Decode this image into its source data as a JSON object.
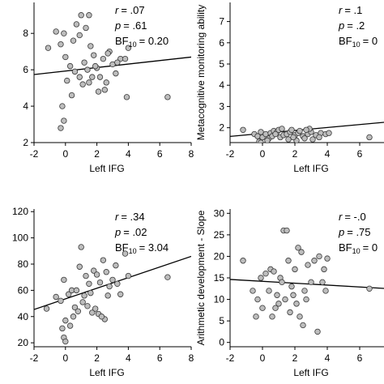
{
  "chart_data": [
    {
      "type": "scatter",
      "xlabel": "Left IFG",
      "ylabel": "",
      "xticks": [
        "-2",
        "0",
        "2",
        "4",
        "6",
        "8"
      ],
      "yticks": [
        "2",
        "4",
        "6",
        "8"
      ],
      "xlim": [
        -2,
        8
      ],
      "ylim": [
        2,
        9.7
      ],
      "stats": {
        "r_label": "r",
        "r_value": "= .07",
        "p_label": "p",
        "p_value": "= .61",
        "bf_label": "BF",
        "bf_sub": "10",
        "bf_value": "= 0.20"
      },
      "fit": {
        "intercept": 5.93,
        "slope": 0.096
      },
      "points": [
        {
          "x": -1.1,
          "y": 7.2
        },
        {
          "x": -0.6,
          "y": 8.1
        },
        {
          "x": -0.3,
          "y": 7.4
        },
        {
          "x": -0.1,
          "y": 8.0
        },
        {
          "x": 0.0,
          "y": 6.7
        },
        {
          "x": 0.3,
          "y": 6.2
        },
        {
          "x": 0.5,
          "y": 7.6
        },
        {
          "x": 0.7,
          "y": 8.5
        },
        {
          "x": 0.9,
          "y": 7.9
        },
        {
          "x": 1.0,
          "y": 9.0
        },
        {
          "x": 1.3,
          "y": 8.3
        },
        {
          "x": 1.5,
          "y": 9.0
        },
        {
          "x": 1.6,
          "y": 7.3
        },
        {
          "x": 1.8,
          "y": 6.8
        },
        {
          "x": 2.0,
          "y": 6.1
        },
        {
          "x": 2.2,
          "y": 5.6
        },
        {
          "x": 2.4,
          "y": 6.6
        },
        {
          "x": 2.6,
          "y": 5.3
        },
        {
          "x": 2.8,
          "y": 7.0
        },
        {
          "x": 3.0,
          "y": 6.3
        },
        {
          "x": 3.2,
          "y": 5.8
        },
        {
          "x": 3.5,
          "y": 6.6
        },
        {
          "x": 3.8,
          "y": 6.6
        },
        {
          "x": 4.0,
          "y": 7.2
        },
        {
          "x": 0.6,
          "y": 5.9
        },
        {
          "x": 0.9,
          "y": 5.6
        },
        {
          "x": 1.1,
          "y": 5.2
        },
        {
          "x": 1.4,
          "y": 6.0
        },
        {
          "x": 1.7,
          "y": 5.6
        },
        {
          "x": 2.1,
          "y": 4.8
        },
        {
          "x": 2.5,
          "y": 4.9
        },
        {
          "x": -0.2,
          "y": 4.0
        },
        {
          "x": -0.1,
          "y": 3.2
        },
        {
          "x": -0.3,
          "y": 2.8
        },
        {
          "x": 0.1,
          "y": 5.4
        },
        {
          "x": 1.2,
          "y": 6.4
        },
        {
          "x": 1.9,
          "y": 6.2
        },
        {
          "x": 3.9,
          "y": 4.5
        },
        {
          "x": 6.5,
          "y": 4.5
        },
        {
          "x": 2.7,
          "y": 6.9
        },
        {
          "x": 3.3,
          "y": 6.4
        },
        {
          "x": 0.4,
          "y": 4.6
        },
        {
          "x": 1.5,
          "y": 5.3
        }
      ]
    },
    {
      "type": "scatter",
      "xlabel": "Left IFG",
      "ylabel": "Metacognitive monitoring ability",
      "xticks": [
        "-2",
        "0",
        "2",
        "4",
        "6"
      ],
      "yticks": [
        "2",
        "3",
        "4",
        "5",
        "6",
        "7",
        "8"
      ],
      "xlim": [
        -2,
        7.5
      ],
      "ylim": [
        1.3,
        7.9
      ],
      "stats": {
        "r_label": "r",
        "r_value": "= .1",
        "p_label": "p",
        "p_value": "= .2",
        "bf_label": "BF",
        "bf_sub": "10",
        "bf_value": "= 0"
      },
      "fit": {
        "intercept": 1.73,
        "slope": 0.07
      },
      "points": [
        {
          "x": -1.2,
          "y": 1.9
        },
        {
          "x": -0.5,
          "y": 1.7
        },
        {
          "x": -0.3,
          "y": 1.6
        },
        {
          "x": -0.1,
          "y": 1.8
        },
        {
          "x": 0.0,
          "y": 1.55
        },
        {
          "x": 0.2,
          "y": 1.7
        },
        {
          "x": 0.5,
          "y": 1.75
        },
        {
          "x": 0.7,
          "y": 1.85
        },
        {
          "x": 0.9,
          "y": 1.8
        },
        {
          "x": 1.1,
          "y": 1.55
        },
        {
          "x": 1.3,
          "y": 1.65
        },
        {
          "x": 1.5,
          "y": 1.7
        },
        {
          "x": 1.7,
          "y": 1.8
        },
        {
          "x": 2.0,
          "y": 1.65
        },
        {
          "x": 2.2,
          "y": 1.75
        },
        {
          "x": 2.5,
          "y": 1.6
        },
        {
          "x": 2.8,
          "y": 1.7
        },
        {
          "x": 3.0,
          "y": 1.8
        },
        {
          "x": 3.3,
          "y": 1.65
        },
        {
          "x": 3.6,
          "y": 1.75
        },
        {
          "x": 3.9,
          "y": 1.7
        },
        {
          "x": 4.1,
          "y": 1.75
        },
        {
          "x": 6.6,
          "y": 1.55
        },
        {
          "x": 0.4,
          "y": 1.5
        },
        {
          "x": -0.2,
          "y": 1.35
        },
        {
          "x": -0.1,
          "y": 1.3
        },
        {
          "x": 0.6,
          "y": 1.6
        },
        {
          "x": 1.8,
          "y": 1.9
        },
        {
          "x": 2.3,
          "y": 1.85
        },
        {
          "x": 2.6,
          "y": 1.5
        },
        {
          "x": 3.5,
          "y": 1.55
        },
        {
          "x": 1.0,
          "y": 1.9
        },
        {
          "x": 1.6,
          "y": 1.45
        },
        {
          "x": 2.1,
          "y": 1.4
        },
        {
          "x": 0.3,
          "y": 1.4
        },
        {
          "x": 1.2,
          "y": 1.95
        },
        {
          "x": 2.9,
          "y": 1.95
        },
        {
          "x": 3.1,
          "y": 1.45
        },
        {
          "x": 1.9,
          "y": 1.55
        },
        {
          "x": 0.8,
          "y": 1.7
        },
        {
          "x": 2.7,
          "y": 1.9
        }
      ]
    },
    {
      "type": "scatter",
      "xlabel": "Left IFG",
      "ylabel": "",
      "xticks": [
        "-2",
        "0",
        "2",
        "4",
        "6",
        "8"
      ],
      "yticks": [
        "20",
        "40",
        "60",
        "80",
        "100",
        "120"
      ],
      "xlim": [
        -2,
        8
      ],
      "ylim": [
        17,
        122
      ],
      "stats": {
        "r_label": "r",
        "r_value": "= .34",
        "p_label": "p",
        "p_value": "= .02",
        "bf_label": "BF",
        "bf_sub": "10",
        "bf_value": "= 3.04"
      },
      "fit": {
        "intercept": 53.5,
        "slope": 4.05
      },
      "points": [
        {
          "x": -1.2,
          "y": 46
        },
        {
          "x": -0.6,
          "y": 55
        },
        {
          "x": -0.3,
          "y": 52
        },
        {
          "x": -0.1,
          "y": 68
        },
        {
          "x": 0.0,
          "y": 37
        },
        {
          "x": 0.2,
          "y": 57
        },
        {
          "x": 0.4,
          "y": 60
        },
        {
          "x": 0.7,
          "y": 60
        },
        {
          "x": 0.9,
          "y": 78
        },
        {
          "x": 1.0,
          "y": 93
        },
        {
          "x": 1.3,
          "y": 71
        },
        {
          "x": 1.5,
          "y": 65
        },
        {
          "x": 1.6,
          "y": 58
        },
        {
          "x": 1.8,
          "y": 75
        },
        {
          "x": 2.0,
          "y": 72
        },
        {
          "x": 2.2,
          "y": 66
        },
        {
          "x": 2.4,
          "y": 83
        },
        {
          "x": 2.6,
          "y": 74
        },
        {
          "x": 2.8,
          "y": 63
        },
        {
          "x": 3.0,
          "y": 68
        },
        {
          "x": 3.2,
          "y": 79
        },
        {
          "x": 3.5,
          "y": 57
        },
        {
          "x": 3.8,
          "y": 88
        },
        {
          "x": 4.0,
          "y": 71
        },
        {
          "x": 0.6,
          "y": 47
        },
        {
          "x": 0.8,
          "y": 44
        },
        {
          "x": 1.1,
          "y": 51
        },
        {
          "x": 1.4,
          "y": 48
        },
        {
          "x": 1.7,
          "y": 43
        },
        {
          "x": 2.1,
          "y": 42
        },
        {
          "x": 2.5,
          "y": 38
        },
        {
          "x": -0.2,
          "y": 31
        },
        {
          "x": -0.1,
          "y": 24
        },
        {
          "x": 0.0,
          "y": 21
        },
        {
          "x": 0.3,
          "y": 33
        },
        {
          "x": 1.2,
          "y": 56
        },
        {
          "x": 1.9,
          "y": 46
        },
        {
          "x": 3.3,
          "y": 65
        },
        {
          "x": 6.5,
          "y": 70
        },
        {
          "x": 2.7,
          "y": 56
        },
        {
          "x": 2.3,
          "y": 40
        },
        {
          "x": 0.5,
          "y": 40
        }
      ]
    },
    {
      "type": "scatter",
      "xlabel": "Left IFG",
      "ylabel": "Arithmetic development - Slope",
      "xticks": [
        "-2",
        "0",
        "2",
        "4",
        "6"
      ],
      "yticks": [
        "0",
        "5",
        "10",
        "15",
        "20",
        "25",
        "30"
      ],
      "xlim": [
        -2,
        7.5
      ],
      "ylim": [
        -1,
        31
      ],
      "stats": {
        "r_label": "r",
        "r_value": "= -.0",
        "p_label": "p",
        "p_value": "= .75",
        "bf_label": "BF",
        "bf_sub": "10",
        "bf_value": "= 0"
      },
      "fit": {
        "intercept": 14.2,
        "slope": -0.22
      },
      "points": [
        {
          "x": -1.2,
          "y": 19
        },
        {
          "x": -0.6,
          "y": 12
        },
        {
          "x": -0.3,
          "y": 10
        },
        {
          "x": -0.1,
          "y": 15
        },
        {
          "x": 0.0,
          "y": 8
        },
        {
          "x": 0.2,
          "y": 16
        },
        {
          "x": 0.5,
          "y": 17
        },
        {
          "x": 0.7,
          "y": 16.5
        },
        {
          "x": 0.9,
          "y": 11
        },
        {
          "x": 1.1,
          "y": 15
        },
        {
          "x": 1.3,
          "y": 26
        },
        {
          "x": 1.5,
          "y": 26
        },
        {
          "x": 1.6,
          "y": 19
        },
        {
          "x": 1.8,
          "y": 13
        },
        {
          "x": 2.0,
          "y": 17
        },
        {
          "x": 2.2,
          "y": 22
        },
        {
          "x": 2.4,
          "y": 21
        },
        {
          "x": 2.6,
          "y": 12
        },
        {
          "x": 2.8,
          "y": 18
        },
        {
          "x": 3.0,
          "y": 14
        },
        {
          "x": 3.2,
          "y": 19
        },
        {
          "x": 3.5,
          "y": 20
        },
        {
          "x": 3.8,
          "y": 17
        },
        {
          "x": 4.0,
          "y": 19.5
        },
        {
          "x": 0.4,
          "y": 12
        },
        {
          "x": 0.6,
          "y": 6
        },
        {
          "x": 0.8,
          "y": 8
        },
        {
          "x": 1.0,
          "y": 9
        },
        {
          "x": 1.2,
          "y": 14
        },
        {
          "x": 1.4,
          "y": 10
        },
        {
          "x": 1.7,
          "y": 7
        },
        {
          "x": 1.9,
          "y": 11
        },
        {
          "x": 2.1,
          "y": 9
        },
        {
          "x": 2.3,
          "y": 6
        },
        {
          "x": 2.5,
          "y": 4
        },
        {
          "x": 2.7,
          "y": 10
        },
        {
          "x": 3.4,
          "y": 2.5
        },
        {
          "x": 3.7,
          "y": 14
        },
        {
          "x": 3.9,
          "y": 12
        },
        {
          "x": 6.6,
          "y": 12.5
        },
        {
          "x": -0.4,
          "y": 6
        }
      ]
    }
  ]
}
